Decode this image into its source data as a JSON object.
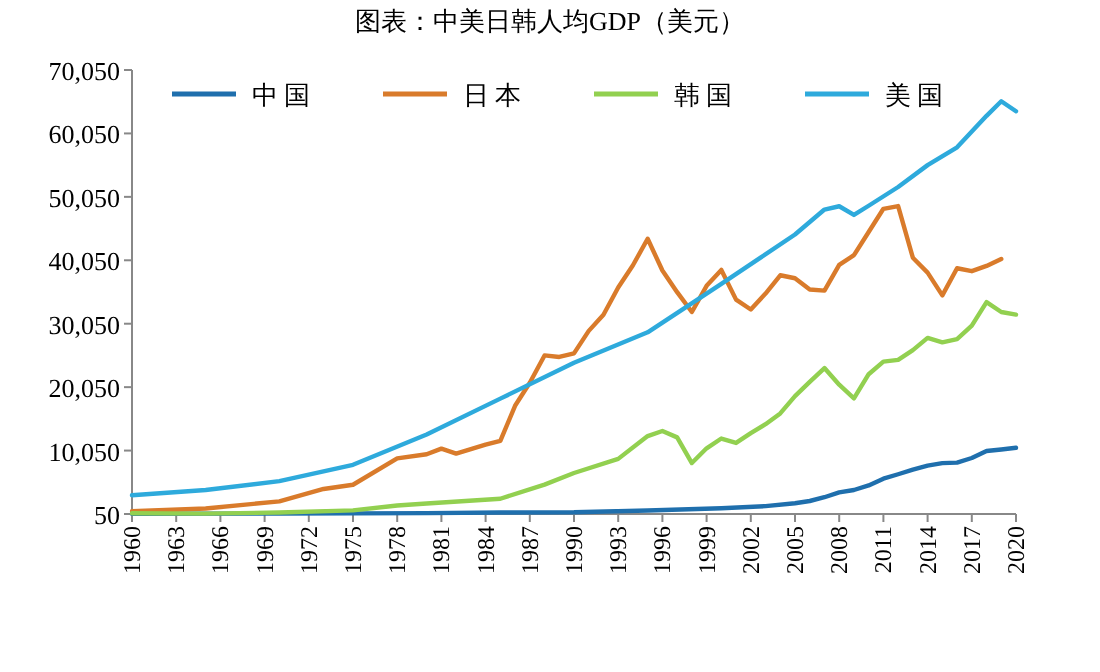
{
  "chart_data": {
    "type": "line",
    "title": "图表：中美日韩人均GDP（美元）",
    "xlim": [
      1960,
      2020
    ],
    "xticks": [
      1960,
      1963,
      1966,
      1969,
      1972,
      1975,
      1978,
      1981,
      1984,
      1987,
      1990,
      1993,
      1996,
      1999,
      2002,
      2005,
      2008,
      2011,
      2014,
      2017,
      2020
    ],
    "ylim": [
      50,
      70050
    ],
    "yticks": [
      {
        "value": 50,
        "label": "50"
      },
      {
        "value": 10050,
        "label": "10,050"
      },
      {
        "value": 20050,
        "label": "20,050"
      },
      {
        "value": 30050,
        "label": "30,050"
      },
      {
        "value": 40050,
        "label": "40,050"
      },
      {
        "value": 50050,
        "label": "50,050"
      },
      {
        "value": 60050,
        "label": "60,050"
      },
      {
        "value": 70050,
        "label": "70,050"
      }
    ],
    "grid": false,
    "legend": "top",
    "marker": "none",
    "line_style": "solid",
    "series": [
      {
        "name": "中国",
        "color": "#1f6fad",
        "x": [
          1960,
          1970,
          1980,
          1985,
          1990,
          1995,
          2000,
          2003,
          2005,
          2006,
          2007,
          2008,
          2009,
          2010,
          2011,
          2012,
          2013,
          2014,
          2015,
          2016,
          2017,
          2018,
          2019,
          2020
        ],
        "values": [
          90,
          113,
          195,
          294,
          318,
          610,
          959,
          1288,
          1753,
          2099,
          2694,
          3468,
          3832,
          4550,
          5618,
          6317,
          7051,
          7679,
          8067,
          8148,
          8879,
          9977,
          10217,
          10500
        ]
      },
      {
        "name": "日本",
        "color": "#d97b2b",
        "x": [
          1960,
          1965,
          1970,
          1973,
          1975,
          1978,
          1980,
          1981,
          1982,
          1984,
          1985,
          1986,
          1987,
          1988,
          1989,
          1990,
          1991,
          1992,
          1993,
          1994,
          1995,
          1996,
          1997,
          1998,
          1999,
          2000,
          2001,
          2002,
          2003,
          2004,
          2005,
          2006,
          2007,
          2008,
          2009,
          2010,
          2011,
          2012,
          2013,
          2014,
          2015,
          2016,
          2017,
          2018,
          2019
        ],
        "values": [
          479,
          920,
          2037,
          3998,
          4659,
          8821,
          9463,
          10361,
          9578,
          10979,
          11585,
          17112,
          20745,
          25051,
          24813,
          25371,
          28925,
          31465,
          35766,
          39269,
          43440,
          38437,
          35022,
          31903,
          36027,
          38532,
          33846,
          32289,
          34808,
          37688,
          37218,
          35434,
          35275,
          39339,
          40855,
          44508,
          48168,
          48603,
          40454,
          38109,
          34524,
          38794,
          38332,
          39159,
          40247
        ]
      },
      {
        "name": "韩国",
        "color": "#92d050",
        "x": [
          1960,
          1965,
          1970,
          1975,
          1978,
          1980,
          1985,
          1988,
          1990,
          1993,
          1995,
          1996,
          1997,
          1998,
          1999,
          2000,
          2001,
          2002,
          2003,
          2004,
          2005,
          2006,
          2007,
          2008,
          2009,
          2010,
          2011,
          2012,
          2013,
          2014,
          2015,
          2016,
          2017,
          2018,
          2019,
          2020
        ],
        "values": [
          158,
          109,
          279,
          615,
          1383,
          1704,
          2457,
          4686,
          6516,
          8741,
          12333,
          13138,
          12131,
          8085,
          10409,
          11948,
          11253,
          12789,
          14209,
          15907,
          18640,
          20888,
          23061,
          20431,
          18291,
          22087,
          24080,
          24359,
          25890,
          27811,
          27105,
          27608,
          29743,
          33447,
          31902,
          31489
        ]
      },
      {
        "name": "美国",
        "color": "#2eaadc",
        "x": [
          1960,
          1965,
          1970,
          1975,
          1980,
          1985,
          1990,
          1995,
          2000,
          2005,
          2007,
          2008,
          2009,
          2010,
          2012,
          2014,
          2016,
          2018,
          2019,
          2020
        ],
        "values": [
          3007,
          3828,
          5234,
          7801,
          12575,
          18237,
          23889,
          28691,
          36330,
          44115,
          48050,
          48570,
          47195,
          48651,
          51603,
          55050,
          57867,
          62823,
          65120,
          63544
        ]
      }
    ]
  }
}
